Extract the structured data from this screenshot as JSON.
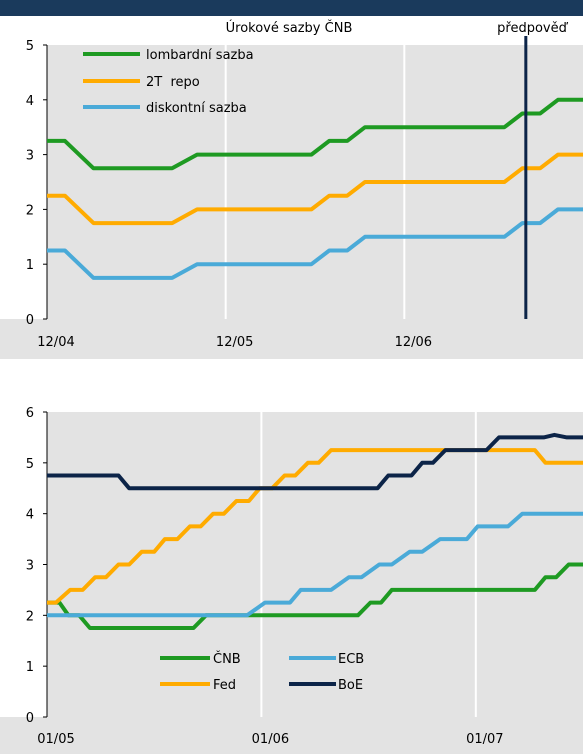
{
  "colors": {
    "green": "#1e9a22",
    "orange": "#ffab00",
    "blue": "#4aaad8",
    "navy": "#0c2448",
    "plot_bg": "#e3e3e3"
  },
  "chart_data": [
    {
      "type": "line",
      "title": "Úrokové sazby ČNB",
      "annotation": "předpověď",
      "annotation_x": 13.4,
      "ylim": [
        0,
        5
      ],
      "yticks": [
        "0",
        "1",
        "2",
        "3",
        "4",
        "5"
      ],
      "xlim": [
        0,
        15
      ],
      "xticks": [
        {
          "label": "12/04",
          "x": 0
        },
        {
          "label": "12/05",
          "x": 5
        },
        {
          "label": "12/06",
          "x": 10
        }
      ],
      "grid": true,
      "legend": "top-left",
      "series": [
        {
          "name": "lombardní sazba",
          "color": "green",
          "x": [
            0,
            0.5,
            1.3,
            3.5,
            4.2,
            7.4,
            7.9,
            8.4,
            8.9,
            12.8,
            13.3,
            13.8,
            14.3,
            15
          ],
          "y": [
            3.25,
            3.25,
            2.75,
            2.75,
            3.0,
            3.0,
            3.25,
            3.25,
            3.5,
            3.5,
            3.75,
            3.75,
            4.0,
            4.0
          ]
        },
        {
          "name": "2T  repo",
          "color": "orange",
          "x": [
            0,
            0.5,
            1.3,
            3.5,
            4.2,
            7.4,
            7.9,
            8.4,
            8.9,
            12.8,
            13.3,
            13.8,
            14.3,
            15
          ],
          "y": [
            2.25,
            2.25,
            1.75,
            1.75,
            2.0,
            2.0,
            2.25,
            2.25,
            2.5,
            2.5,
            2.75,
            2.75,
            3.0,
            3.0
          ]
        },
        {
          "name": "diskontní sazba",
          "color": "blue",
          "x": [
            0,
            0.5,
            1.3,
            3.5,
            4.2,
            7.4,
            7.9,
            8.4,
            8.9,
            12.8,
            13.3,
            13.8,
            14.3,
            15
          ],
          "y": [
            1.25,
            1.25,
            0.75,
            0.75,
            1.0,
            1.0,
            1.25,
            1.25,
            1.5,
            1.5,
            1.75,
            1.75,
            2.0,
            2.0
          ]
        }
      ]
    },
    {
      "type": "line",
      "ylim": [
        0,
        6
      ],
      "yticks": [
        "0",
        "1",
        "2",
        "3",
        "4",
        "5",
        "6"
      ],
      "xlim": [
        0,
        30
      ],
      "xticks": [
        {
          "label": "01/05",
          "x": 0
        },
        {
          "label": "01/06",
          "x": 12
        },
        {
          "label": "01/07",
          "x": 24
        }
      ],
      "grid": true,
      "legend": "bottom-center",
      "series": [
        {
          "name": "ČNB",
          "color": "green",
          "x": [
            0,
            0.7,
            1.2,
            1.8,
            2.4,
            3.5,
            8.2,
            8.9,
            9.5,
            17.4,
            18.1,
            18.7,
            19.3,
            19.9,
            27.3,
            27.9,
            28.5,
            29.2,
            30
          ],
          "y": [
            2.25,
            2.25,
            2.0,
            2.0,
            1.75,
            1.75,
            1.75,
            2.0,
            2.0,
            2.0,
            2.25,
            2.25,
            2.5,
            2.5,
            2.5,
            2.75,
            2.75,
            3.0,
            3.0
          ]
        },
        {
          "name": "ECB",
          "color": "blue",
          "x": [
            0,
            10.6,
            11.2,
            12.2,
            12.8,
            13.6,
            14.2,
            15.2,
            15.9,
            16.9,
            17.6,
            18.6,
            19.3,
            20.3,
            21.0,
            22.0,
            22.7,
            23.5,
            24.1,
            25.2,
            25.8,
            26.6,
            27.3,
            28.3,
            28.9,
            30
          ],
          "y": [
            2.0,
            2.0,
            2.0,
            2.25,
            2.25,
            2.25,
            2.5,
            2.5,
            2.5,
            2.75,
            2.75,
            3.0,
            3.0,
            3.25,
            3.25,
            3.5,
            3.5,
            3.5,
            3.75,
            3.75,
            3.75,
            4.0,
            4.0,
            4.0,
            4.0,
            4.0
          ]
        },
        {
          "name": "Fed",
          "color": "orange",
          "x": [
            0,
            0.5,
            1.3,
            2.0,
            2.7,
            3.3,
            4.0,
            4.6,
            5.3,
            6.0,
            6.6,
            7.3,
            8.0,
            8.6,
            9.3,
            9.9,
            10.6,
            11.3,
            11.9,
            12.6,
            13.3,
            13.9,
            14.6,
            15.2,
            15.9,
            16.6,
            17.2,
            17.9,
            18.5,
            25.3,
            26.0,
            26.6,
            27.3,
            27.9,
            28.5,
            29.2,
            30
          ],
          "y": [
            2.25,
            2.25,
            2.5,
            2.5,
            2.75,
            2.75,
            3.0,
            3.0,
            3.25,
            3.25,
            3.5,
            3.5,
            3.75,
            3.75,
            4.0,
            4.0,
            4.25,
            4.25,
            4.5,
            4.5,
            4.75,
            4.75,
            5.0,
            5.0,
            5.25,
            5.25,
            5.25,
            5.25,
            5.25,
            5.25,
            5.25,
            5.25,
            5.25,
            5.0,
            5.0,
            5.0,
            5.0
          ]
        },
        {
          "name": "BoE",
          "color": "navy",
          "x": [
            0,
            4.0,
            4.6,
            8.0,
            9.2,
            11.9,
            12.5,
            18.5,
            19.1,
            20.4,
            21.0,
            21.6,
            22.3,
            24.6,
            25.3,
            27.1,
            27.8,
            28.4,
            29.1,
            30
          ],
          "y": [
            4.75,
            4.75,
            4.5,
            4.5,
            4.5,
            4.5,
            4.5,
            4.5,
            4.75,
            4.75,
            5.0,
            5.0,
            5.25,
            5.25,
            5.5,
            5.5,
            5.5,
            5.55,
            5.5,
            5.5
          ]
        }
      ]
    }
  ]
}
